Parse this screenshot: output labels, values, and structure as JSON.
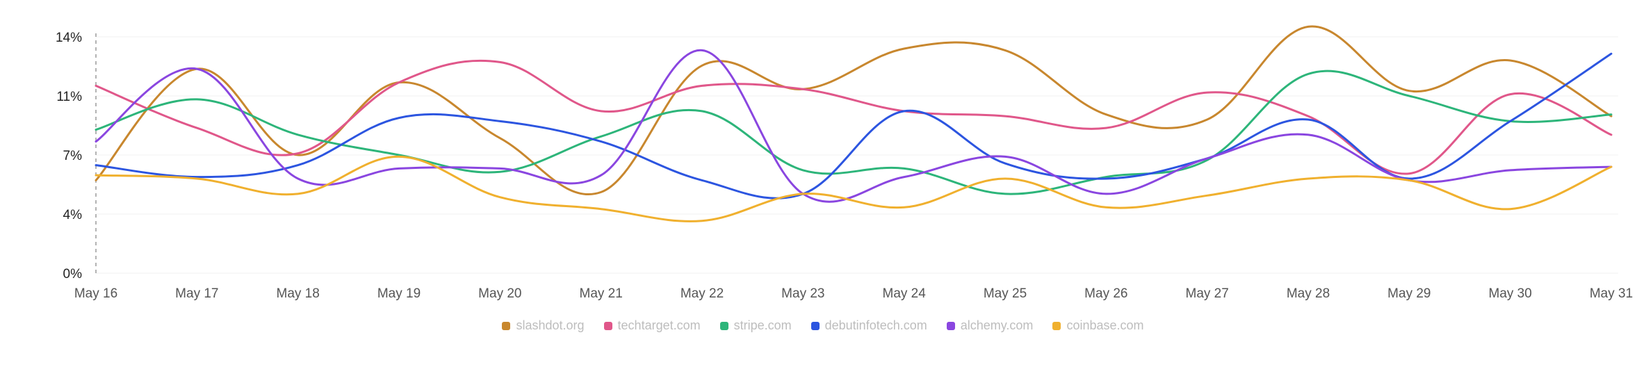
{
  "chart_data": {
    "type": "line",
    "categories": [
      "May 16",
      "May 17",
      "May 18",
      "May 19",
      "May 20",
      "May 21",
      "May 22",
      "May 23",
      "May 24",
      "May 25",
      "May 26",
      "May 27",
      "May 28",
      "May 29",
      "May 30",
      "May 31"
    ],
    "y_ticks": [
      "0%",
      "4%",
      "7%",
      "11%",
      "14%"
    ],
    "ylim": [
      0,
      14
    ],
    "grid": "horizontal, faint",
    "legend_position": "bottom-center",
    "series": [
      {
        "name": "slashdot.org",
        "color": "#C8872E",
        "values": [
          5.5,
          12.1,
          7.0,
          11.3,
          8.0,
          4.8,
          12.3,
          10.9,
          13.3,
          13.2,
          9.4,
          9.1,
          14.6,
          10.8,
          12.6,
          9.3
        ]
      },
      {
        "name": "techtarget.com",
        "color": "#E0578A",
        "values": [
          11.1,
          8.6,
          7.1,
          11.3,
          12.5,
          9.6,
          11.1,
          10.9,
          9.6,
          9.3,
          8.6,
          10.7,
          9.3,
          5.9,
          10.6,
          8.2
        ]
      },
      {
        "name": "stripe.com",
        "color": "#2DB57A",
        "values": [
          8.5,
          10.3,
          8.2,
          7.0,
          6.0,
          8.1,
          9.6,
          6.1,
          6.2,
          4.7,
          5.7,
          6.7,
          11.8,
          10.5,
          9.0,
          9.4
        ]
      },
      {
        "name": "debutinfotech.com",
        "color": "#2C55E0",
        "values": [
          6.4,
          5.7,
          6.4,
          9.2,
          9.0,
          7.8,
          5.5,
          4.7,
          9.6,
          6.5,
          5.6,
          6.8,
          9.1,
          5.6,
          9.0,
          13.0
        ]
      },
      {
        "name": "alchemy.com",
        "color": "#8A46E0",
        "values": [
          7.8,
          12.1,
          5.6,
          6.2,
          6.2,
          5.8,
          13.2,
          4.7,
          5.7,
          6.9,
          4.7,
          6.8,
          8.2,
          5.5,
          6.1,
          6.3
        ]
      },
      {
        "name": "coinbase.com",
        "color": "#F0B02E",
        "values": [
          5.8,
          5.6,
          4.7,
          6.9,
          4.5,
          3.8,
          3.1,
          4.7,
          3.9,
          5.6,
          3.9,
          4.6,
          5.6,
          5.5,
          3.8,
          6.3
        ]
      }
    ]
  }
}
